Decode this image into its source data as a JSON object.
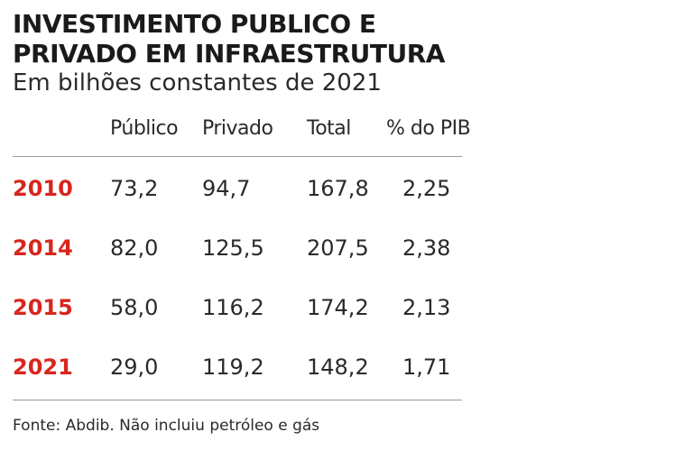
{
  "chart_data": {
    "type": "table",
    "title": "INVESTIMENTO PUBLICO E PRIVADO EM INFRAESTRUTURA",
    "subtitle": "Em bilhões constantes de 2021",
    "columns": [
      "Público",
      "Privado",
      "Total",
      "% do PIB"
    ],
    "rows": [
      {
        "year": "2010",
        "values": [
          "73,2",
          "94,7",
          "167,8",
          "2,25"
        ]
      },
      {
        "year": "2014",
        "values": [
          "82,0",
          "125,5",
          "207,5",
          "2,38"
        ]
      },
      {
        "year": "2015",
        "values": [
          "58,0",
          "116,2",
          "174,2",
          "2,13"
        ]
      },
      {
        "year": "2021",
        "values": [
          "29,0",
          "119,2",
          "148,2",
          "1,71"
        ]
      }
    ],
    "source": "Fonte: Abdib. Não incluiu petróleo e gás"
  },
  "colors": {
    "year_accent": "#d7261e",
    "text": "#1a1a1a",
    "rule": "#9a9a9a"
  }
}
